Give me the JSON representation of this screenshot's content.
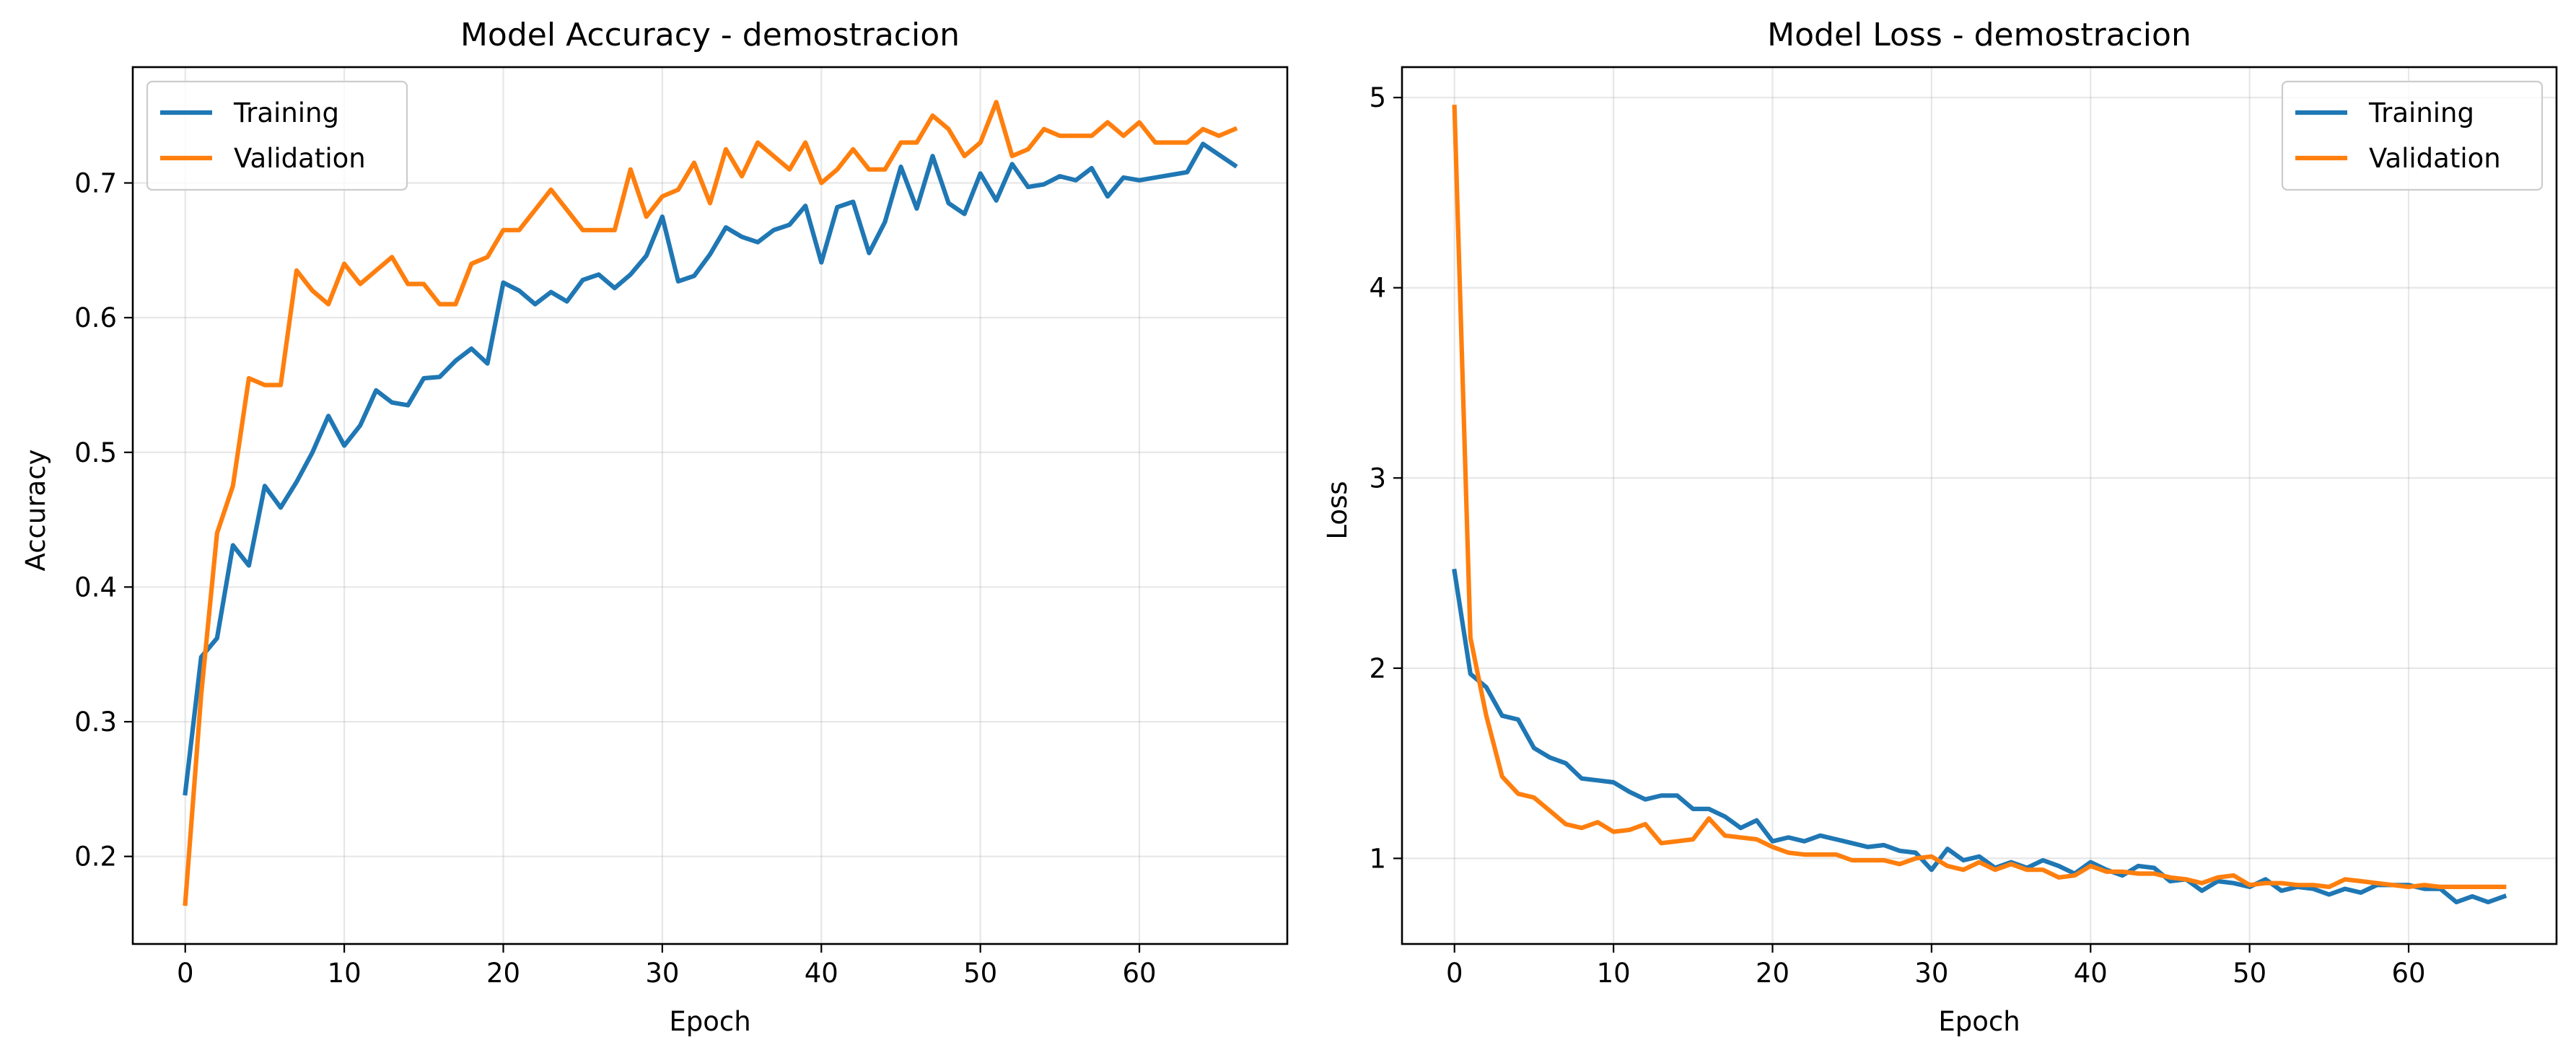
{
  "chart_data": [
    {
      "type": "line",
      "title": "Model Accuracy - demostracion",
      "xlabel": "Epoch",
      "ylabel": "Accuracy",
      "xlim": [
        -3.3,
        69.3
      ],
      "ylim": [
        0.135,
        0.786
      ],
      "xticks": [
        0,
        10,
        20,
        30,
        40,
        50,
        60
      ],
      "yticks": [
        0.2,
        0.3,
        0.4,
        0.5,
        0.6,
        0.7
      ],
      "ytick_labels": [
        "0.2",
        "0.3",
        "0.4",
        "0.5",
        "0.6",
        "0.7"
      ],
      "grid": true,
      "legend_position": "upper left",
      "x": [
        0,
        1,
        2,
        3,
        4,
        5,
        6,
        7,
        8,
        9,
        10,
        11,
        12,
        13,
        14,
        15,
        16,
        17,
        18,
        19,
        20,
        21,
        22,
        23,
        24,
        25,
        26,
        27,
        28,
        29,
        30,
        31,
        32,
        33,
        34,
        35,
        36,
        37,
        38,
        39,
        40,
        41,
        42,
        43,
        44,
        45,
        46,
        47,
        48,
        49,
        50,
        51,
        52,
        53,
        54,
        55,
        56,
        57,
        58,
        59,
        60,
        61,
        62,
        63,
        64,
        65,
        66
      ],
      "series": [
        {
          "name": "Training",
          "color": "#1f77b4",
          "values": [
            0.247,
            0.348,
            0.362,
            0.431,
            0.416,
            0.475,
            0.459,
            0.478,
            0.5,
            0.527,
            0.505,
            0.52,
            0.546,
            0.537,
            0.535,
            0.555,
            0.556,
            0.568,
            0.577,
            0.566,
            0.626,
            0.62,
            0.61,
            0.619,
            0.612,
            0.628,
            0.632,
            0.622,
            0.632,
            0.646,
            0.675,
            0.627,
            0.631,
            0.647,
            0.667,
            0.66,
            0.656,
            0.665,
            0.669,
            0.683,
            0.641,
            0.682,
            0.686,
            0.648,
            0.671,
            0.712,
            0.681,
            0.72,
            0.685,
            0.677,
            0.707,
            0.687,
            0.714,
            0.697,
            0.699,
            0.705,
            0.702,
            0.711,
            0.69,
            0.704,
            0.702,
            0.704,
            0.706,
            0.708,
            0.729,
            0.721,
            0.713
          ]
        },
        {
          "name": "Validation",
          "color": "#ff7f0e",
          "values": [
            0.165,
            0.32,
            0.44,
            0.475,
            0.555,
            0.55,
            0.55,
            0.635,
            0.62,
            0.61,
            0.64,
            0.625,
            0.635,
            0.645,
            0.625,
            0.625,
            0.61,
            0.61,
            0.64,
            0.645,
            0.665,
            0.665,
            0.68,
            0.695,
            0.68,
            0.665,
            0.665,
            0.665,
            0.71,
            0.675,
            0.69,
            0.695,
            0.715,
            0.685,
            0.725,
            0.705,
            0.73,
            0.72,
            0.71,
            0.73,
            0.7,
            0.71,
            0.725,
            0.71,
            0.71,
            0.73,
            0.73,
            0.75,
            0.74,
            0.72,
            0.73,
            0.76,
            0.72,
            0.725,
            0.74,
            0.735,
            0.735,
            0.735,
            0.745,
            0.735,
            0.745,
            0.73,
            0.73,
            0.73,
            0.74,
            0.735,
            0.74
          ]
        }
      ]
    },
    {
      "type": "line",
      "title": "Model Loss - demostracion",
      "xlabel": "Epoch",
      "ylabel": "Loss",
      "xlim": [
        -3.3,
        69.3
      ],
      "ylim": [
        0.55,
        5.16
      ],
      "xticks": [
        0,
        10,
        20,
        30,
        40,
        50,
        60
      ],
      "yticks": [
        1,
        2,
        3,
        4,
        5
      ],
      "ytick_labels": [
        "1",
        "2",
        "3",
        "4",
        "5"
      ],
      "grid": true,
      "legend_position": "upper right",
      "x": [
        0,
        1,
        2,
        3,
        4,
        5,
        6,
        7,
        8,
        9,
        10,
        11,
        12,
        13,
        14,
        15,
        16,
        17,
        18,
        19,
        20,
        21,
        22,
        23,
        24,
        25,
        26,
        27,
        28,
        29,
        30,
        31,
        32,
        33,
        34,
        35,
        36,
        37,
        38,
        39,
        40,
        41,
        42,
        43,
        44,
        45,
        46,
        47,
        48,
        49,
        50,
        51,
        52,
        53,
        54,
        55,
        56,
        57,
        58,
        59,
        60,
        61,
        62,
        63,
        64,
        65,
        66
      ],
      "series": [
        {
          "name": "Training",
          "color": "#1f77b4",
          "values": [
            2.51,
            1.97,
            1.9,
            1.75,
            1.73,
            1.58,
            1.53,
            1.5,
            1.42,
            1.41,
            1.4,
            1.35,
            1.31,
            1.33,
            1.33,
            1.26,
            1.26,
            1.22,
            1.16,
            1.2,
            1.09,
            1.11,
            1.09,
            1.12,
            1.1,
            1.08,
            1.06,
            1.07,
            1.04,
            1.03,
            0.94,
            1.05,
            0.99,
            1.01,
            0.95,
            0.98,
            0.95,
            0.99,
            0.96,
            0.92,
            0.98,
            0.94,
            0.91,
            0.96,
            0.95,
            0.88,
            0.89,
            0.83,
            0.88,
            0.87,
            0.85,
            0.89,
            0.83,
            0.85,
            0.84,
            0.81,
            0.84,
            0.82,
            0.86,
            0.86,
            0.86,
            0.84,
            0.84,
            0.77,
            0.8,
            0.77,
            0.8
          ]
        },
        {
          "name": "Validation",
          "color": "#ff7f0e",
          "values": [
            4.95,
            2.16,
            1.75,
            1.43,
            1.34,
            1.32,
            1.25,
            1.18,
            1.16,
            1.19,
            1.14,
            1.15,
            1.18,
            1.08,
            1.09,
            1.1,
            1.21,
            1.12,
            1.11,
            1.1,
            1.06,
            1.03,
            1.02,
            1.02,
            1.02,
            0.99,
            0.99,
            0.99,
            0.97,
            1.0,
            1.01,
            0.96,
            0.94,
            0.98,
            0.94,
            0.97,
            0.94,
            0.94,
            0.9,
            0.91,
            0.96,
            0.93,
            0.93,
            0.92,
            0.92,
            0.9,
            0.89,
            0.87,
            0.9,
            0.91,
            0.86,
            0.87,
            0.87,
            0.86,
            0.86,
            0.85,
            0.89,
            0.88,
            0.87,
            0.86,
            0.85,
            0.86,
            0.85,
            0.85,
            0.85,
            0.85,
            0.85
          ]
        }
      ]
    }
  ]
}
